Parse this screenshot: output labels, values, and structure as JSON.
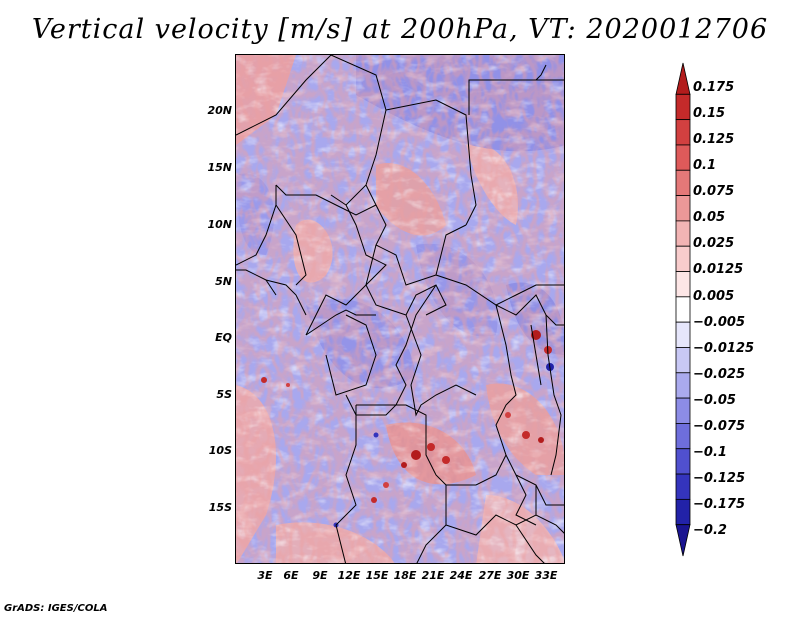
{
  "title": "Vertical velocity [m/s] at 200hPa, VT: 2020012706",
  "credit": "GrADS: IGES/COLA",
  "map": {
    "lat_labels": [
      "20N",
      "15N",
      "10N",
      "5N",
      "EQ",
      "5S",
      "10S",
      "15S"
    ],
    "lat_values": [
      20,
      15,
      10,
      5,
      0,
      -5,
      -10,
      -15
    ],
    "lon_labels": [
      "3E",
      "6E",
      "9E",
      "12E",
      "15E",
      "18E",
      "21E",
      "24E",
      "27E",
      "30E",
      "33E"
    ],
    "lon_values": [
      3,
      6,
      9,
      12,
      15,
      18,
      21,
      24,
      27,
      30,
      33
    ],
    "lat_range": [
      -20.5,
      24.5
    ],
    "lon_range": [
      0.2,
      35.0
    ]
  },
  "colorbar": {
    "levels": [
      "0.175",
      "0.15",
      "0.125",
      "0.1",
      "0.075",
      "0.05",
      "0.025",
      "0.0125",
      "0.005",
      "−0.005",
      "−0.0125",
      "−0.025",
      "−0.05",
      "−0.075",
      "−0.1",
      "−0.125",
      "−0.175",
      "−0.2"
    ],
    "colors": [
      "#b31c1c",
      "#c42a2a",
      "#d24040",
      "#de5a5a",
      "#e47878",
      "#ec9898",
      "#f2b4b4",
      "#f8cccc",
      "#fde6e6",
      "#ffffff",
      "#e6e6fb",
      "#c8c8f5",
      "#aaaaee",
      "#8c8ce6",
      "#6e6edc",
      "#5050cf",
      "#3434bd",
      "#2222a8",
      "#1a1490"
    ]
  }
}
